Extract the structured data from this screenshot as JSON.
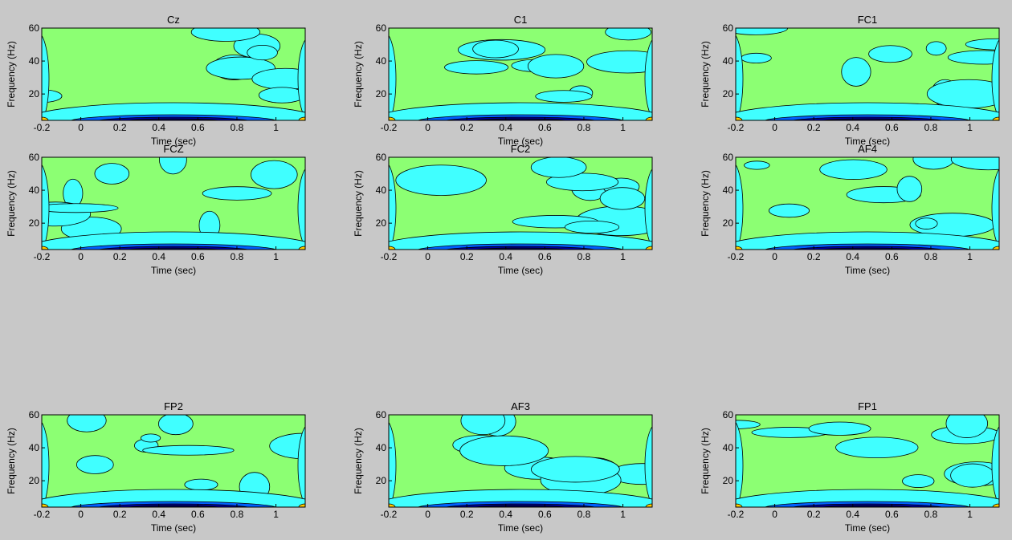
{
  "chart_data": [
    {
      "type": "contour",
      "title": "Cz",
      "xlabel": "Time (sec)",
      "ylabel": "Frequency (Hz)",
      "xlim": [
        -0.2,
        1.15
      ],
      "ylim": [
        4,
        60
      ],
      "xticks": [
        -0.2,
        0,
        0.2,
        0.4,
        0.6,
        0.8,
        1
      ],
      "yticks": [
        20,
        40,
        60
      ]
    },
    {
      "type": "contour",
      "title": "C1",
      "xlabel": "Time (sec)",
      "ylabel": "Frequency (Hz)",
      "xlim": [
        -0.2,
        1.15
      ],
      "ylim": [
        4,
        60
      ],
      "xticks": [
        -0.2,
        0,
        0.2,
        0.4,
        0.6,
        0.8,
        1
      ],
      "yticks": [
        20,
        40,
        60
      ]
    },
    {
      "type": "contour",
      "title": "FC1",
      "xlabel": "Time (sec)",
      "ylabel": "Frequency (Hz)",
      "xlim": [
        -0.2,
        1.15
      ],
      "ylim": [
        4,
        60
      ],
      "xticks": [
        -0.2,
        0,
        0.2,
        0.4,
        0.6,
        0.8,
        1
      ],
      "yticks": [
        20,
        40,
        60
      ]
    },
    {
      "type": "contour",
      "title": "FCZ",
      "xlabel": "Time (sec)",
      "ylabel": "Frequency (Hz)",
      "xlim": [
        -0.2,
        1.15
      ],
      "ylim": [
        4,
        60
      ],
      "xticks": [
        -0.2,
        0,
        0.2,
        0.4,
        0.6,
        0.8,
        1
      ],
      "yticks": [
        20,
        40,
        60
      ]
    },
    {
      "type": "contour",
      "title": "FC2",
      "xlabel": "Time (sec)",
      "ylabel": "Frequency (Hz)",
      "xlim": [
        -0.2,
        1.15
      ],
      "ylim": [
        4,
        60
      ],
      "xticks": [
        -0.2,
        0,
        0.2,
        0.4,
        0.6,
        0.8,
        1
      ],
      "yticks": [
        20,
        40,
        60
      ]
    },
    {
      "type": "contour",
      "title": "AF4",
      "xlabel": "Time (sec)",
      "ylabel": "Frequency (Hz)",
      "xlim": [
        -0.2,
        1.15
      ],
      "ylim": [
        4,
        60
      ],
      "xticks": [
        -0.2,
        0,
        0.2,
        0.4,
        0.6,
        0.8,
        1
      ],
      "yticks": [
        20,
        40,
        60
      ]
    },
    {
      "type": "contour",
      "title": "FP2",
      "xlabel": "Time (sec)",
      "ylabel": "Frequency (Hz)",
      "xlim": [
        -0.2,
        1.15
      ],
      "ylim": [
        4,
        60
      ],
      "xticks": [
        -0.2,
        0,
        0.2,
        0.4,
        0.6,
        0.8,
        1
      ],
      "yticks": [
        20,
        40,
        60
      ]
    },
    {
      "type": "contour",
      "title": "AF3",
      "xlabel": "Time (sec)",
      "ylabel": "Frequency (Hz)",
      "xlim": [
        -0.2,
        1.15
      ],
      "ylim": [
        4,
        60
      ],
      "xticks": [
        -0.2,
        0,
        0.2,
        0.4,
        0.6,
        0.8,
        1
      ],
      "yticks": [
        20,
        40,
        60
      ]
    },
    {
      "type": "contour",
      "title": "FP1",
      "xlabel": "Time (sec)",
      "ylabel": "Frequency (Hz)",
      "xlim": [
        -0.2,
        1.15
      ],
      "ylim": [
        4,
        60
      ],
      "xticks": [
        -0.2,
        0,
        0.2,
        0.4,
        0.6,
        0.8,
        1
      ],
      "yticks": [
        20,
        40,
        60
      ]
    }
  ]
}
